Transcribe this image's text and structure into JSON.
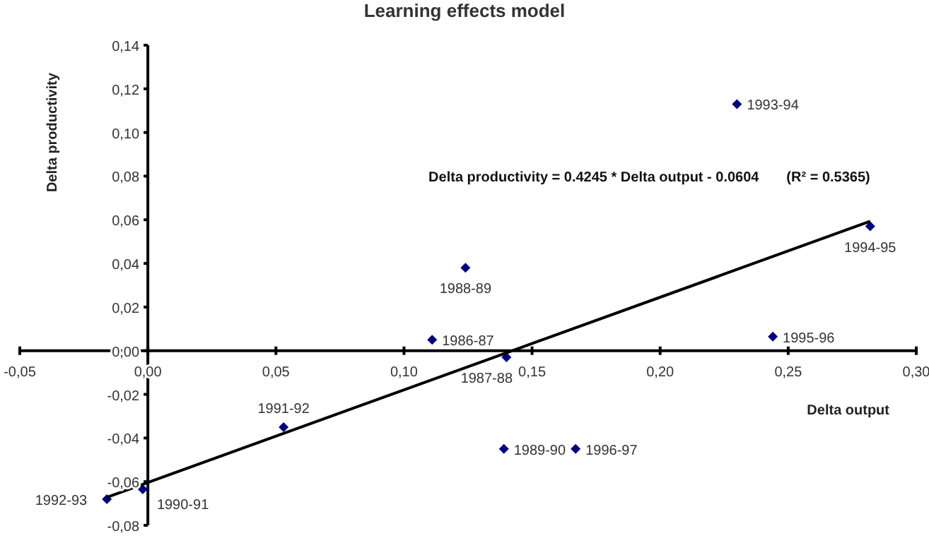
{
  "chart_data": {
    "type": "scatter",
    "title": "Learning effects model",
    "xlabel": "Delta output",
    "ylabel": "Delta productivity",
    "xlim": [
      -0.05,
      0.3
    ],
    "ylim": [
      -0.08,
      0.14
    ],
    "xticks": [
      {
        "value": -0.05,
        "label": "-0,05"
      },
      {
        "value": 0,
        "label": "0,00"
      },
      {
        "value": 0.05,
        "label": "0,05"
      },
      {
        "value": 0.1,
        "label": "0,10"
      },
      {
        "value": 0.15,
        "label": "0,15"
      },
      {
        "value": 0.2,
        "label": "0,20"
      },
      {
        "value": 0.25,
        "label": "0,25"
      },
      {
        "value": 0.3,
        "label": "0,30"
      }
    ],
    "yticks": [
      {
        "value": -0.08,
        "label": "-0,08"
      },
      {
        "value": -0.06,
        "label": "-0,06"
      },
      {
        "value": -0.04,
        "label": "-0,04"
      },
      {
        "value": -0.02,
        "label": "-0,02"
      },
      {
        "value": 0,
        "label": "0,00"
      },
      {
        "value": 0.02,
        "label": "0,02"
      },
      {
        "value": 0.04,
        "label": "0,04"
      },
      {
        "value": 0.06,
        "label": "0,06"
      },
      {
        "value": 0.08,
        "label": "0,08"
      },
      {
        "value": 0.1,
        "label": "0,10"
      },
      {
        "value": 0.12,
        "label": "0,12"
      },
      {
        "value": 0.14,
        "label": "0,14"
      }
    ],
    "grid": false,
    "legend": false,
    "marker": "diamond",
    "series": [
      {
        "type": "scatter",
        "color": "#000080",
        "x": [
          0.111,
          0.14,
          0.124,
          0.139,
          -0.002,
          0.053,
          -0.016,
          0.23,
          0.282,
          0.244,
          0.167
        ],
        "values": [
          0.005,
          -0.003,
          0.038,
          -0.045,
          -0.0635,
          -0.035,
          -0.068,
          0.113,
          0.057,
          0.0065,
          -0.045
        ]
      },
      {
        "type": "line",
        "color": "#000000",
        "marker": "none",
        "x": [
          -0.016,
          0.282
        ],
        "values": [
          -0.0672,
          0.0593
        ]
      }
    ],
    "annotations": [
      {
        "text": "1986-87",
        "x": 0.111,
        "y": 0.005
      },
      {
        "text": "1987-88",
        "x": 0.14,
        "y": -0.003
      },
      {
        "text": "1988-89",
        "x": 0.124,
        "y": 0.038
      },
      {
        "text": "1989-90",
        "x": 0.139,
        "y": -0.045
      },
      {
        "text": "1990-91",
        "x": -0.002,
        "y": -0.0635
      },
      {
        "text": "1991-92",
        "x": 0.053,
        "y": -0.035
      },
      {
        "text": "1992-93",
        "x": -0.016,
        "y": -0.068
      },
      {
        "text": "1993-94",
        "x": 0.23,
        "y": 0.113
      },
      {
        "text": "1994-95",
        "x": 0.282,
        "y": 0.057
      },
      {
        "text": "1995-96",
        "x": 0.244,
        "y": 0.0065
      },
      {
        "text": "1996-97",
        "x": 0.167,
        "y": -0.045
      },
      "Delta productivity = 0.4245 * Delta output - 0.0604       (R² = 0.5365)"
    ]
  }
}
